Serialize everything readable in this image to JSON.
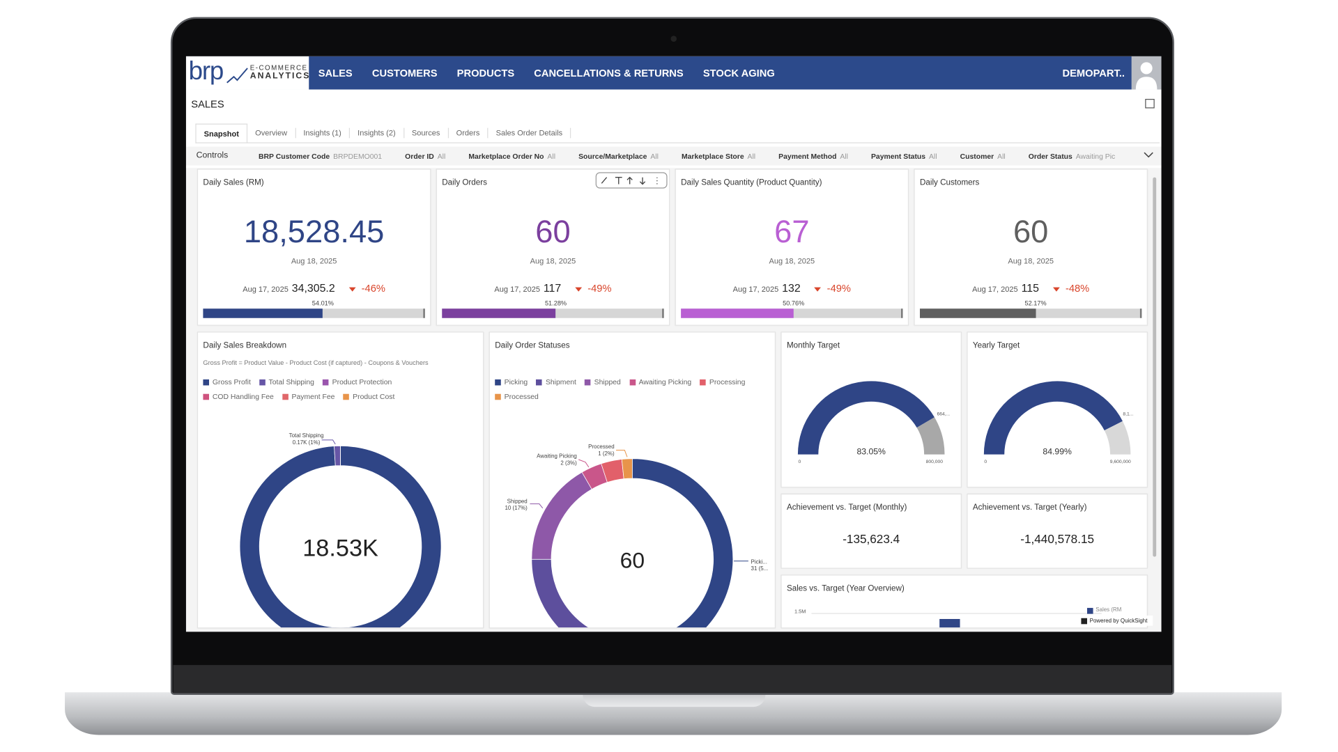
{
  "nav": {
    "logo": "brp",
    "logo_line1": "E-COMMERCE",
    "logo_line2": "ANALYTICS",
    "items": [
      "SALES",
      "CUSTOMERS",
      "PRODUCTS",
      "CANCELLATIONS & RETURNS",
      "STOCK AGING"
    ],
    "user": "DEMOPART.."
  },
  "page_title": "SALES",
  "tabs": [
    "Snapshot",
    "Overview",
    "Insights (1)",
    "Insights (2)",
    "Sources",
    "Orders",
    "Sales Order Details"
  ],
  "controls": {
    "label": "Controls",
    "filters": [
      {
        "name": "BRP Customer Code",
        "value": "BRPDEMO001"
      },
      {
        "name": "Order ID",
        "value": "All"
      },
      {
        "name": "Marketplace Order No",
        "value": "All"
      },
      {
        "name": "Source/Marketplace",
        "value": "All"
      },
      {
        "name": "Marketplace Store",
        "value": "All"
      },
      {
        "name": "Payment Method",
        "value": "All"
      },
      {
        "name": "Payment Status",
        "value": "All"
      },
      {
        "name": "Customer",
        "value": "All"
      },
      {
        "name": "Order Status",
        "value": "Awaiting Pic"
      }
    ]
  },
  "kpis": [
    {
      "title": "Daily Sales (RM)",
      "value": "18,528.45",
      "date": "Aug 18, 2025",
      "prev_date": "Aug 17, 2025",
      "prev_value": "34,305.2",
      "change": "-46%",
      "progress": 54.01,
      "progress_label": "54.01%",
      "color": "#2f4586"
    },
    {
      "title": "Daily Orders",
      "value": "60",
      "date": "Aug 18, 2025",
      "prev_date": "Aug 17, 2025",
      "prev_value": "117",
      "change": "-49%",
      "progress": 51.28,
      "progress_label": "51.28%",
      "color": "#7b3f9e"
    },
    {
      "title": "Daily Sales Quantity (Product Quantity)",
      "value": "67",
      "date": "Aug 18, 2025",
      "prev_date": "Aug 17, 2025",
      "prev_value": "132",
      "change": "-49%",
      "progress": 50.76,
      "progress_label": "50.76%",
      "color": "#b95fd3"
    },
    {
      "title": "Daily Customers",
      "value": "60",
      "date": "Aug 18, 2025",
      "prev_date": "Aug 17, 2025",
      "prev_value": "115",
      "change": "-48%",
      "progress": 52.17,
      "progress_label": "52.17%",
      "color": "#5f5f5f"
    }
  ],
  "breakdown": {
    "title": "Daily Sales Breakdown",
    "subtitle": "Gross Profit = Product Value - Product Cost (if captured) - Coupons & Vouchers",
    "names": [
      "Gross Profit",
      "Total Shipping",
      "Product Protection",
      "COD Handling Fee",
      "Payment Fee",
      "Product Cost"
    ],
    "colors": [
      "#2f4586",
      "#6656a6",
      "#9a55ad",
      "#cf537f",
      "#e0676a",
      "#e8944a"
    ],
    "values": [
      99,
      1,
      0,
      0,
      0,
      0
    ],
    "center": "18.53K",
    "annotation": [
      "Total Shipping",
      "0.17K (1%)"
    ]
  },
  "statuses": {
    "title": "Daily Order Statuses",
    "names": [
      "Picking",
      "Shipment",
      "Shipped",
      "Awaiting Picking",
      "Processing",
      "Processed"
    ],
    "colors": [
      "#2f4586",
      "#5d4f9d",
      "#8e58a8",
      "#c9568a",
      "#e2606a",
      "#e8944a"
    ],
    "values": [
      31,
      14,
      10,
      2,
      2,
      1
    ],
    "center": "60",
    "annotations": [
      [
        "Picki...",
        "31 (5..."
      ],
      [
        "Shipped",
        "10 (17%)"
      ],
      [
        "Awaiting Picking",
        "2 (3%)"
      ],
      [
        "Processed",
        "1 (2%)"
      ]
    ]
  },
  "gauges": [
    {
      "title": "Monthly Target",
      "value": 83.05,
      "label": "83.05%",
      "min": "0",
      "max": "800,000",
      "actual": "664,..."
    },
    {
      "title": "Yearly Target",
      "value": 84.99,
      "label": "84.99%",
      "min": "0",
      "max": "9,600,000",
      "actual": "8,1..."
    }
  ],
  "achievements": [
    {
      "title": "Achievement vs. Target (Monthly)",
      "value": "-135,623.4"
    },
    {
      "title": "Achievement vs. Target (Yearly)",
      "value": "-1,440,578.15"
    }
  ],
  "sales_vs_target": {
    "title": "Sales vs. Target (Year Overview)",
    "tick": "1.5M",
    "legend": "Sales (RM)"
  },
  "footer": "Powered by QuickSight"
}
